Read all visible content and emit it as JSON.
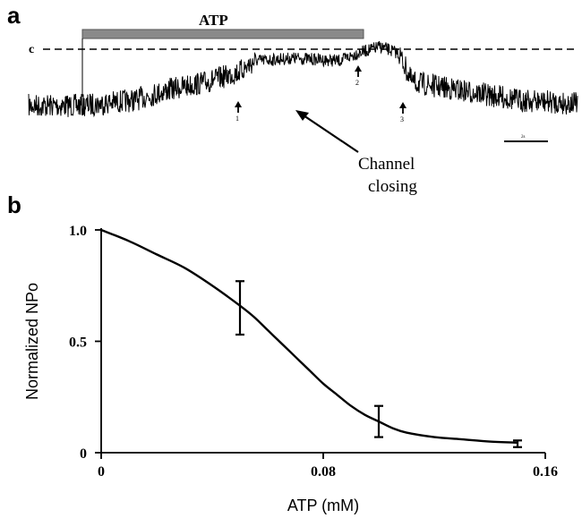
{
  "panel_a": {
    "label": "a",
    "atp_bar_label": "ATP",
    "closed_level_label": "c",
    "markers": [
      "1",
      "2",
      "3"
    ],
    "annotation_line1": "Channel",
    "annotation_line2": "closing",
    "scale_bar_label": "2s"
  },
  "panel_b": {
    "label": "b"
  },
  "chart_data": {
    "type": "line",
    "xlabel": "ATP (mM)",
    "ylabel": "Normalized NPo",
    "xlim": [
      0,
      0.16
    ],
    "ylim": [
      0,
      1.0
    ],
    "x_ticks": [
      0,
      0.08,
      0.16
    ],
    "x_tick_labels": [
      "0",
      "0.08",
      "0.16"
    ],
    "y_ticks": [
      0,
      0.5,
      1.0
    ],
    "y_tick_labels": [
      "0",
      "0.5",
      "1.0"
    ],
    "grid": false,
    "series": [
      {
        "x": [
          0,
          0.05,
          0.1,
          0.15
        ],
        "y": [
          1.0,
          0.65,
          0.14,
          0.04
        ],
        "error": [
          0,
          0.12,
          0.07,
          0.015
        ]
      }
    ],
    "fit_curve": {
      "x": [
        0,
        0.01,
        0.02,
        0.03,
        0.04,
        0.05,
        0.055,
        0.06,
        0.065,
        0.07,
        0.075,
        0.08,
        0.085,
        0.09,
        0.095,
        0.1,
        0.105,
        0.11,
        0.12,
        0.13,
        0.14,
        0.15
      ],
      "y": [
        1.0,
        0.95,
        0.89,
        0.83,
        0.75,
        0.66,
        0.61,
        0.55,
        0.49,
        0.43,
        0.37,
        0.31,
        0.26,
        0.21,
        0.17,
        0.14,
        0.11,
        0.09,
        0.07,
        0.06,
        0.05,
        0.045
      ]
    }
  }
}
